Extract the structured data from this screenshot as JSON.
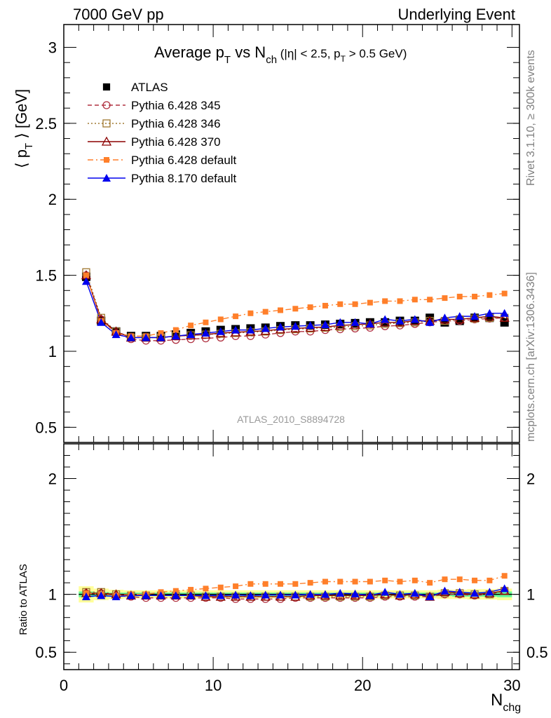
{
  "header": {
    "left": "7000 GeV pp",
    "right": "Underlying Event"
  },
  "side_labels": {
    "rivet": "Rivet 3.1.10, ≥ 300k events",
    "mcplots": "mcplots.cern.ch [arXiv:1306.3436]"
  },
  "analysis_id": "ATLAS_2010_S8894728",
  "colors": {
    "data": "#000000",
    "p345": "#b03040",
    "p346": "#a07830",
    "p370": "#8b0000",
    "p6def": "#ff7f2a",
    "p8": "#0000ee",
    "band_inner": "#66ff99",
    "band_outer": "#ffff99"
  },
  "chart_data": [
    {
      "type": "line",
      "panel": "main",
      "title": "Average pT vs Nch (|η| < 2.5, pT > 0.5 GeV)",
      "title_parts": {
        "a": "Average p",
        "a_sub": "T",
        "b": " vs N",
        "b_sub": "ch",
        "c": " (|η| < 2.5, p",
        "c_sub": "T",
        "d": " > 0.5 GeV)"
      },
      "ylabel_parts": {
        "pre": "⟨ p",
        "sub": "T",
        "post": " ⟩ [GeV]"
      },
      "xlim": [
        0,
        30.5
      ],
      "ylim": [
        0.4,
        3.15
      ],
      "yticks": [
        0.5,
        1,
        1.5,
        2,
        2.5,
        3
      ],
      "yticklabels": [
        "0.5",
        "1",
        "1.5",
        "2",
        "2.5",
        "3"
      ],
      "x": [
        1.5,
        2.5,
        3.5,
        4.5,
        5.5,
        6.5,
        7.5,
        8.5,
        9.5,
        10.5,
        11.5,
        12.5,
        13.5,
        14.5,
        15.5,
        16.5,
        17.5,
        18.5,
        19.5,
        20.5,
        21.5,
        22.5,
        23.5,
        24.5,
        25.5,
        26.5,
        27.5,
        28.5,
        29.5
      ],
      "legend": {
        "placement": "top-left"
      },
      "series": [
        {
          "name": "ATLAS",
          "key": "atlas",
          "marker": "filled-square",
          "line": "none",
          "values": [
            1.49,
            1.2,
            1.13,
            1.1,
            1.1,
            1.1,
            1.11,
            1.12,
            1.13,
            1.14,
            1.145,
            1.15,
            1.155,
            1.165,
            1.17,
            1.17,
            1.175,
            1.18,
            1.185,
            1.19,
            1.19,
            1.2,
            1.2,
            1.22,
            1.19,
            1.2,
            1.22,
            1.22,
            1.19
          ]
        },
        {
          "name": "Pythia 6.428 345",
          "key": "p345",
          "marker": "open-circle",
          "line": "dashed",
          "values": [
            1.5,
            1.21,
            1.12,
            1.08,
            1.07,
            1.07,
            1.075,
            1.08,
            1.085,
            1.09,
            1.1,
            1.1,
            1.11,
            1.12,
            1.13,
            1.13,
            1.14,
            1.145,
            1.15,
            1.155,
            1.165,
            1.17,
            1.18,
            1.19,
            1.2,
            1.2,
            1.21,
            1.215,
            1.22
          ]
        },
        {
          "name": "Pythia 6.428 346",
          "key": "p346",
          "marker": "open-square",
          "line": "dotted",
          "values": [
            1.52,
            1.22,
            1.13,
            1.09,
            1.09,
            1.09,
            1.1,
            1.105,
            1.11,
            1.115,
            1.12,
            1.125,
            1.13,
            1.14,
            1.145,
            1.15,
            1.155,
            1.16,
            1.165,
            1.17,
            1.18,
            1.185,
            1.19,
            1.2,
            1.2,
            1.21,
            1.215,
            1.22,
            1.22
          ]
        },
        {
          "name": "Pythia 6.428 370",
          "key": "p370",
          "marker": "open-triangle",
          "line": "solid",
          "values": [
            1.5,
            1.21,
            1.13,
            1.09,
            1.09,
            1.09,
            1.1,
            1.105,
            1.11,
            1.12,
            1.125,
            1.13,
            1.135,
            1.145,
            1.15,
            1.155,
            1.16,
            1.17,
            1.175,
            1.18,
            1.19,
            1.19,
            1.2,
            1.2,
            1.21,
            1.21,
            1.22,
            1.23,
            1.22
          ]
        },
        {
          "name": "Pythia 6.428 default",
          "key": "p6def",
          "marker": "filled-square-small",
          "line": "dashdot",
          "values": [
            1.5,
            1.2,
            1.12,
            1.1,
            1.1,
            1.12,
            1.14,
            1.17,
            1.19,
            1.21,
            1.23,
            1.25,
            1.26,
            1.27,
            1.28,
            1.29,
            1.3,
            1.31,
            1.31,
            1.32,
            1.33,
            1.33,
            1.34,
            1.34,
            1.35,
            1.36,
            1.36,
            1.37,
            1.38
          ]
        },
        {
          "name": "Pythia 8.170 default",
          "key": "p8",
          "marker": "filled-triangle",
          "line": "solid",
          "values": [
            1.46,
            1.19,
            1.11,
            1.09,
            1.09,
            1.09,
            1.1,
            1.11,
            1.12,
            1.13,
            1.14,
            1.14,
            1.15,
            1.16,
            1.165,
            1.17,
            1.175,
            1.19,
            1.19,
            1.18,
            1.21,
            1.2,
            1.21,
            1.19,
            1.22,
            1.23,
            1.23,
            1.25,
            1.25
          ]
        }
      ]
    },
    {
      "type": "line",
      "panel": "ratio",
      "ylabel": "Ratio to ATLAS",
      "xlabel_parts": {
        "main": "N",
        "sub": "chg"
      },
      "xlim": [
        0,
        30.5
      ],
      "ylim": [
        0.35,
        2.3
      ],
      "xticks": [
        0,
        10,
        20,
        30
      ],
      "xticklabels": [
        "0",
        "10",
        "20",
        "30"
      ],
      "yticks": [
        0.5,
        1,
        2
      ],
      "yticklabels": [
        "0.5",
        "1",
        "2"
      ],
      "x": [
        1.5,
        2.5,
        3.5,
        4.5,
        5.5,
        6.5,
        7.5,
        8.5,
        9.5,
        10.5,
        11.5,
        12.5,
        13.5,
        14.5,
        15.5,
        16.5,
        17.5,
        18.5,
        19.5,
        20.5,
        21.5,
        22.5,
        23.5,
        24.5,
        25.5,
        26.5,
        27.5,
        28.5,
        29.5
      ],
      "band_inner": [
        0.025,
        0.02,
        0.015,
        0.015,
        0.015,
        0.015,
        0.015,
        0.015,
        0.015,
        0.015,
        0.015,
        0.015,
        0.015,
        0.015,
        0.015,
        0.015,
        0.015,
        0.015,
        0.015,
        0.015,
        0.015,
        0.015,
        0.015,
        0.015,
        0.015,
        0.02,
        0.02,
        0.02,
        0.025
      ],
      "band_outer": [
        0.07,
        0.05,
        0.04,
        0.035,
        0.035,
        0.035,
        0.035,
        0.035,
        0.035,
        0.035,
        0.035,
        0.035,
        0.035,
        0.035,
        0.035,
        0.035,
        0.035,
        0.035,
        0.035,
        0.035,
        0.035,
        0.035,
        0.035,
        0.035,
        0.04,
        0.04,
        0.045,
        0.045,
        0.05
      ],
      "series": [
        {
          "name": "Pythia 6.428 345",
          "key": "p345",
          "values": [
            1.01,
            1.01,
            0.99,
            0.98,
            0.97,
            0.97,
            0.97,
            0.97,
            0.97,
            0.97,
            0.96,
            0.96,
            0.96,
            0.96,
            0.97,
            0.97,
            0.97,
            0.97,
            0.97,
            0.97,
            0.98,
            0.98,
            0.98,
            0.98,
            1.0,
            1.0,
            0.99,
            1.0,
            1.03
          ]
        },
        {
          "name": "Pythia 6.428 346",
          "key": "p346",
          "values": [
            1.02,
            1.02,
            1.0,
            0.99,
            0.99,
            0.99,
            0.99,
            0.99,
            0.98,
            0.98,
            0.98,
            0.98,
            0.98,
            0.98,
            0.98,
            0.98,
            0.98,
            0.98,
            0.98,
            0.98,
            0.99,
            0.99,
            0.99,
            0.98,
            1.01,
            1.01,
            1.0,
            1.0,
            1.03
          ]
        },
        {
          "name": "Pythia 6.428 370",
          "key": "p370",
          "values": [
            1.01,
            1.01,
            1.0,
            0.99,
            0.99,
            0.99,
            0.99,
            0.99,
            0.98,
            0.98,
            0.98,
            0.98,
            0.98,
            0.98,
            0.98,
            0.99,
            0.99,
            0.99,
            0.99,
            0.99,
            1.0,
            0.99,
            1.0,
            0.98,
            1.02,
            1.01,
            1.0,
            1.01,
            1.03
          ]
        },
        {
          "name": "Pythia 6.428 default",
          "key": "p6def",
          "values": [
            1.01,
            1.0,
            0.99,
            1.0,
            1.0,
            1.02,
            1.03,
            1.04,
            1.05,
            1.06,
            1.07,
            1.09,
            1.09,
            1.09,
            1.09,
            1.1,
            1.11,
            1.11,
            1.11,
            1.11,
            1.12,
            1.11,
            1.12,
            1.1,
            1.13,
            1.13,
            1.12,
            1.12,
            1.16
          ]
        },
        {
          "name": "Pythia 8.170 default",
          "key": "p8",
          "values": [
            0.98,
            0.99,
            0.98,
            0.99,
            0.99,
            0.99,
            0.99,
            0.99,
            0.99,
            0.99,
            0.995,
            0.99,
            0.995,
            0.995,
            0.995,
            1.0,
            1.0,
            1.01,
            1.005,
            0.99,
            1.02,
            1.0,
            1.01,
            0.98,
            1.03,
            1.02,
            1.01,
            1.02,
            1.05
          ]
        }
      ]
    }
  ]
}
